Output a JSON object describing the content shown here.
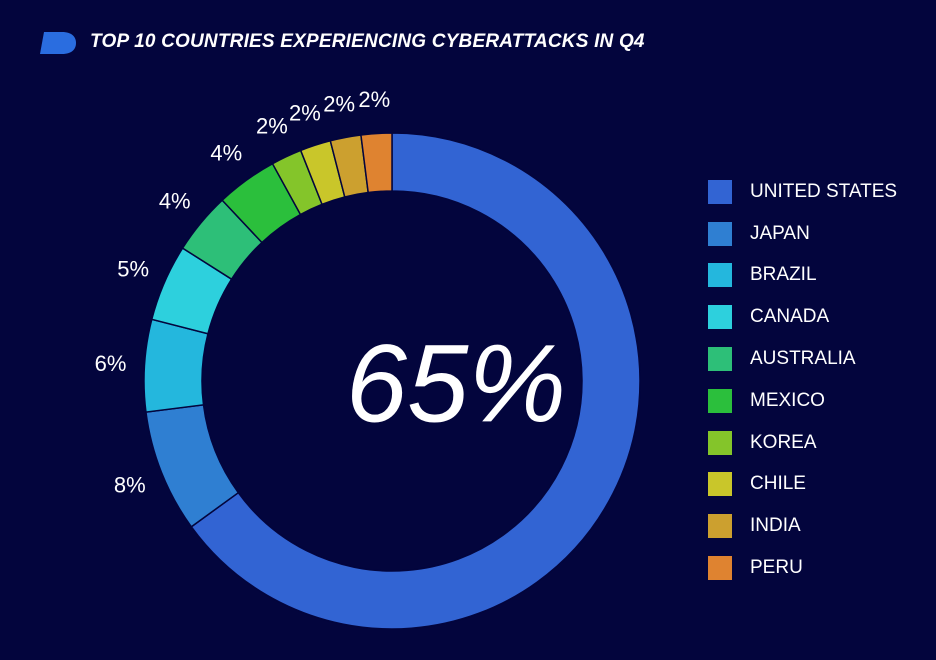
{
  "header": {
    "title": "TOP 10 COUNTRIES EXPERIENCING CYBERATTACKS IN Q4",
    "logo_color": "#2a6de0"
  },
  "chart_data": {
    "type": "pie",
    "title": "TOP 10 COUNTRIES EXPERIENCING CYBERATTACKS IN Q4",
    "donut": true,
    "center_label": "65%",
    "legend_position": "right",
    "categories": [
      "UNITED STATES",
      "JAPAN",
      "BRAZIL",
      "CANADA",
      "AUSTRALIA",
      "MEXICO",
      "KOREA",
      "CHILE",
      "INDIA",
      "PERU"
    ],
    "values": [
      65,
      8,
      6,
      5,
      4,
      4,
      2,
      2,
      2,
      2
    ],
    "labels": [
      "",
      "8%",
      "6%",
      "5%",
      "4%",
      "4%",
      "2%",
      "2%",
      "2%",
      "2%"
    ],
    "colors": [
      "#3264d3",
      "#2f7fd2",
      "#24b7dd",
      "#2dd0dd",
      "#2dbf78",
      "#2bbf3c",
      "#84c52a",
      "#c9c62a",
      "#cca02f",
      "#df8330"
    ]
  }
}
